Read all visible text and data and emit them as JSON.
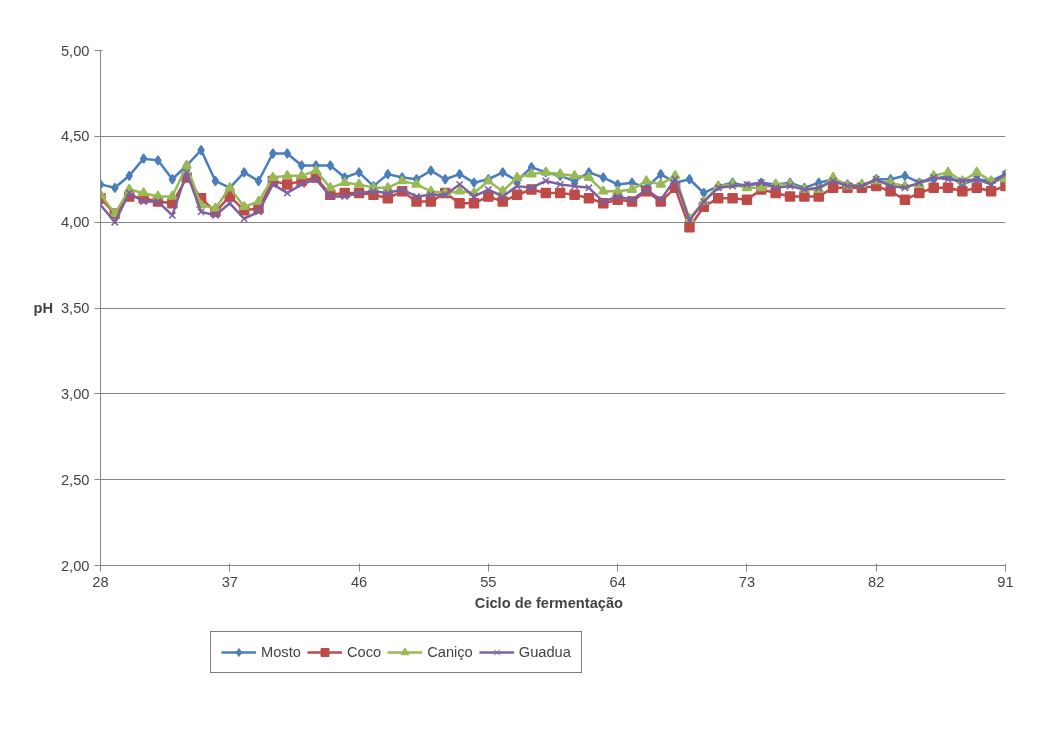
{
  "chart_data": {
    "type": "line",
    "xlabel": "Ciclo  de  fermentação",
    "ylabel": "pH",
    "x": [
      28,
      29,
      30,
      31,
      32,
      33,
      34,
      35,
      36,
      37,
      38,
      39,
      40,
      41,
      42,
      43,
      44,
      45,
      46,
      47,
      48,
      49,
      50,
      51,
      52,
      53,
      54,
      55,
      56,
      57,
      58,
      59,
      60,
      61,
      62,
      63,
      64,
      65,
      66,
      67,
      68,
      69,
      70,
      71,
      72,
      73,
      74,
      75,
      76,
      77,
      78,
      79,
      80,
      81,
      82,
      83,
      84,
      85,
      86,
      87,
      88,
      89,
      90,
      91
    ],
    "xlim": [
      28,
      91
    ],
    "xticks": [
      28,
      37,
      46,
      55,
      64,
      73,
      82,
      91
    ],
    "ylim": [
      2,
      5
    ],
    "yticks": [
      {
        "value": 2,
        "label": "2,00"
      },
      {
        "value": 2.5,
        "label": "2,50"
      },
      {
        "value": 3,
        "label": "3,00"
      },
      {
        "value": 3.5,
        "label": "3,50"
      },
      {
        "value": 4,
        "label": "4,00"
      },
      {
        "value": 4.5,
        "label": "4,50"
      },
      {
        "value": 5,
        "label": "5,00"
      }
    ],
    "grid": "y",
    "legend": "bottom",
    "line_style": "solid",
    "series": [
      {
        "name": "Mosto",
        "color": "#4a7ebb",
        "marker": "diamond",
        "values": [
          4.22,
          4.2,
          4.27,
          4.37,
          4.36,
          4.25,
          4.33,
          4.42,
          4.24,
          4.2,
          4.29,
          4.24,
          4.4,
          4.4,
          4.33,
          4.33,
          4.33,
          4.26,
          4.29,
          4.21,
          4.28,
          4.26,
          4.25,
          4.3,
          4.25,
          4.28,
          4.23,
          4.25,
          4.29,
          4.24,
          4.32,
          4.29,
          4.27,
          4.24,
          4.29,
          4.26,
          4.22,
          4.23,
          4.2,
          4.28,
          4.23,
          4.25,
          4.17,
          4.21,
          4.23,
          4.21,
          4.23,
          4.22,
          4.23,
          4.2,
          4.23,
          4.25,
          4.22,
          4.21,
          4.25,
          4.25,
          4.27,
          4.23,
          4.25,
          4.27,
          4.22,
          4.25,
          4.24,
          4.28
        ]
      },
      {
        "name": "Coco",
        "color": "#be4b48",
        "marker": "square",
        "values": [
          4.14,
          4.05,
          4.15,
          4.14,
          4.12,
          4.11,
          4.26,
          4.14,
          4.06,
          4.15,
          4.07,
          4.08,
          4.24,
          4.22,
          4.24,
          4.26,
          4.16,
          4.17,
          4.17,
          4.16,
          4.14,
          4.18,
          4.12,
          4.12,
          4.17,
          4.11,
          4.11,
          4.15,
          4.12,
          4.16,
          4.19,
          4.17,
          4.17,
          4.16,
          4.14,
          4.11,
          4.13,
          4.12,
          4.18,
          4.12,
          4.2,
          3.97,
          4.09,
          4.14,
          4.14,
          4.13,
          4.19,
          4.17,
          4.15,
          4.15,
          4.15,
          4.2,
          4.2,
          4.2,
          4.21,
          4.18,
          4.13,
          4.17,
          4.2,
          4.2,
          4.18,
          4.2,
          4.18,
          4.21
        ]
      },
      {
        "name": "Caniço",
        "color": "#98b954",
        "marker": "triangle",
        "values": [
          4.16,
          4.05,
          4.19,
          4.17,
          4.15,
          4.15,
          4.33,
          4.1,
          4.08,
          4.2,
          4.09,
          4.12,
          4.26,
          4.27,
          4.27,
          4.3,
          4.2,
          4.23,
          4.22,
          4.2,
          4.2,
          4.24,
          4.22,
          4.18,
          4.17,
          4.18,
          4.17,
          4.24,
          4.18,
          4.26,
          4.28,
          4.29,
          4.28,
          4.27,
          4.26,
          4.18,
          4.18,
          4.19,
          4.24,
          4.22,
          4.27,
          4.02,
          4.12,
          4.21,
          4.22,
          4.2,
          4.2,
          4.22,
          4.22,
          4.19,
          4.19,
          4.26,
          4.21,
          4.22,
          4.24,
          4.23,
          4.21,
          4.22,
          4.27,
          4.29,
          4.24,
          4.29,
          4.24,
          4.25
        ]
      },
      {
        "name": "Guadua",
        "color": "#7d60a0",
        "marker": "cross",
        "values": [
          4.1,
          4.0,
          4.17,
          4.12,
          4.12,
          4.04,
          4.29,
          4.06,
          4.04,
          4.11,
          4.02,
          4.06,
          4.22,
          4.17,
          4.22,
          4.25,
          4.15,
          4.15,
          4.17,
          4.18,
          4.17,
          4.19,
          4.15,
          4.16,
          4.16,
          4.22,
          4.15,
          4.19,
          4.15,
          4.21,
          4.2,
          4.24,
          4.22,
          4.21,
          4.2,
          4.12,
          4.15,
          4.13,
          4.19,
          4.13,
          4.25,
          4.01,
          4.12,
          4.2,
          4.21,
          4.22,
          4.23,
          4.2,
          4.21,
          4.19,
          4.2,
          4.24,
          4.21,
          4.21,
          4.25,
          4.21,
          4.2,
          4.23,
          4.26,
          4.25,
          4.24,
          4.25,
          4.22,
          4.28
        ]
      }
    ]
  }
}
